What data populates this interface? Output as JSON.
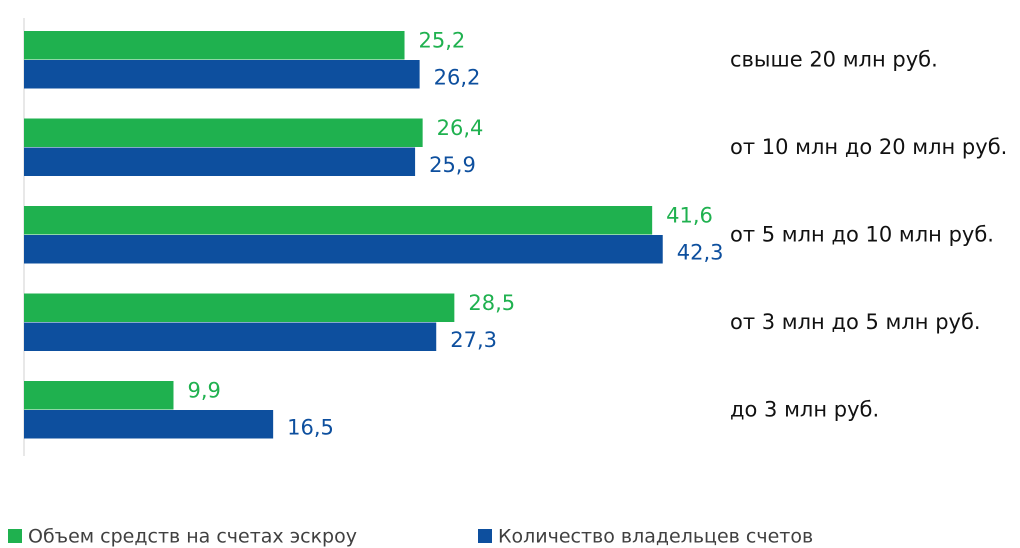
{
  "chart_data": {
    "type": "hbar",
    "categories": [
      "свыше 20 млн руб.",
      "от 10 млн до 20 млн руб.",
      "от 5 млн до 10 млн руб.",
      "от 3 млн до 5 млн руб.",
      "до 3 млн руб."
    ],
    "series": [
      {
        "name": "Объем средств на счетах эскроу",
        "color": "#1fb14f",
        "values": [
          25.2,
          26.4,
          41.6,
          28.5,
          9.9
        ],
        "value_labels": [
          "25,2",
          "26,4",
          "41,6",
          "28,5",
          "9,9"
        ]
      },
      {
        "name": "Количество владельцев счетов",
        "color": "#0d4f9e",
        "values": [
          26.2,
          25.9,
          42.3,
          27.3,
          16.5
        ],
        "value_labels": [
          "26,2",
          "25,9",
          "42,3",
          "27,3",
          "16,5"
        ]
      }
    ]
  }
}
